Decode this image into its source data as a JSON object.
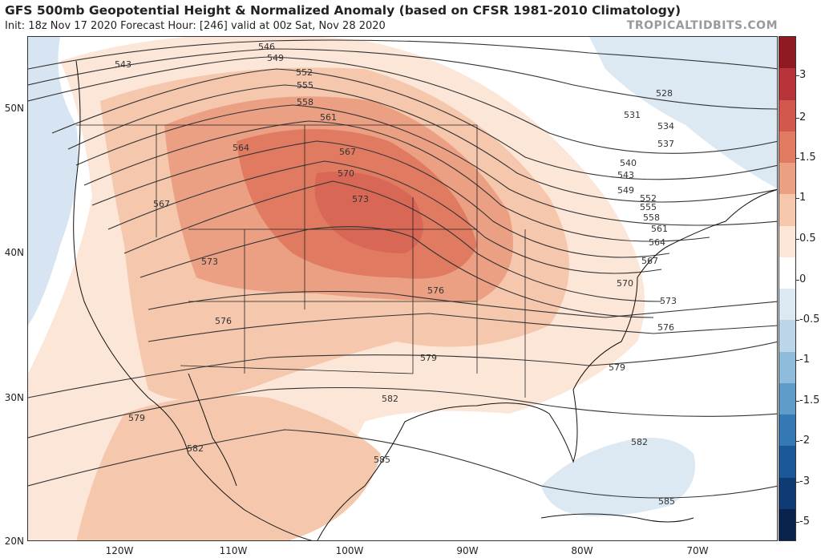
{
  "header": {
    "title": "GFS 500mb Geopotential Height & Normalized Anomaly (based on CFSR 1981-2010 Climatology)",
    "subtitle": "Init: 18z Nov 17 2020   Forecast Hour: [246]   valid at 00z Sat, Nov 28 2020",
    "credit": "TROPICALTIDBITS.COM"
  },
  "axes": {
    "lat_labels": [
      "50N",
      "40N",
      "30N",
      "20N"
    ],
    "lon_labels": [
      "120W",
      "110W",
      "100W",
      "90W",
      "80W",
      "70W"
    ]
  },
  "colorbar": {
    "labels": [
      "3",
      "2",
      "1.5",
      "1",
      "0.5",
      "0",
      "-0.5",
      "-1",
      "-1.5",
      "-2",
      "-3",
      "-5"
    ],
    "colors": [
      "#8f1a1f",
      "#b8333a",
      "#d2574c",
      "#e07b62",
      "#eba084",
      "#f5c7ad",
      "#fce6d8",
      "#ffffff",
      "#dde9f2",
      "#bcd5e8",
      "#90bcdc",
      "#5f9cc9",
      "#3479b4",
      "#1a5899",
      "#0f3a74",
      "#0a234d"
    ]
  },
  "contours": {
    "labels": [
      "543",
      "546",
      "549",
      "552",
      "555",
      "558",
      "561",
      "564",
      "567",
      "570",
      "573",
      "576",
      "579",
      "582",
      "585",
      "528",
      "531",
      "534",
      "537",
      "540"
    ]
  }
}
